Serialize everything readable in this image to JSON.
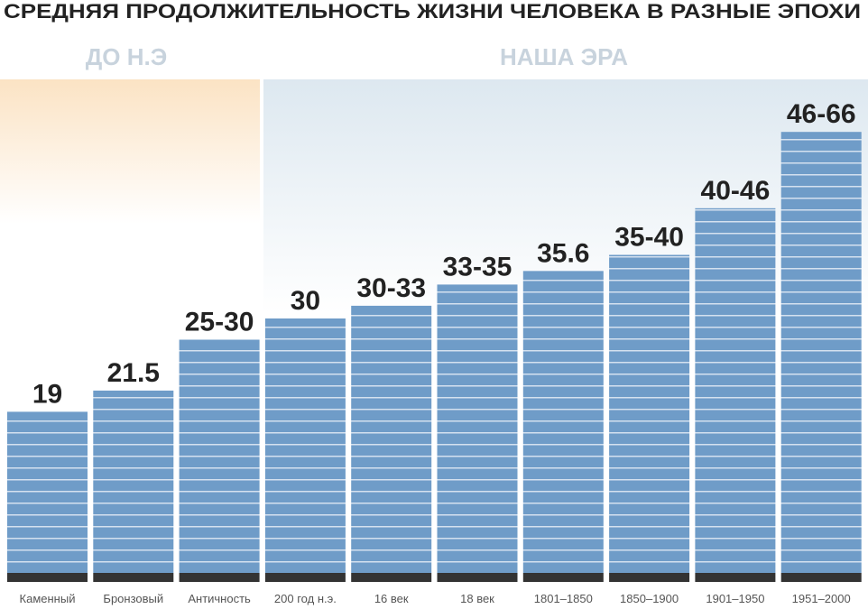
{
  "chart_data": {
    "type": "bar",
    "title": "СРЕДНЯЯ ПРОДОЛЖИТЕЛЬНОСТЬ ЖИЗНИ ЧЕЛОВЕКА В РАЗНЫЕ ЭПОХИ",
    "annotations": [
      "ДО Н.Э",
      "НАША ЭРА"
    ],
    "categories": [
      "Каменный",
      "Бронзовый",
      "Античность",
      "200 год н.э.",
      "16 век",
      "18 век",
      "1801–1850",
      "1850–1900",
      "1901–1950",
      "1951–2000"
    ],
    "values": [
      19,
      21.5,
      27.5,
      30,
      31.5,
      34,
      35.6,
      37.5,
      43,
      52
    ],
    "value_labels": [
      "19",
      "21.5",
      "25-30",
      "30",
      "30-33",
      "33-35",
      "35.6",
      "35-40",
      "40-46",
      "46-66"
    ],
    "color": "#6f9cc8"
  }
}
